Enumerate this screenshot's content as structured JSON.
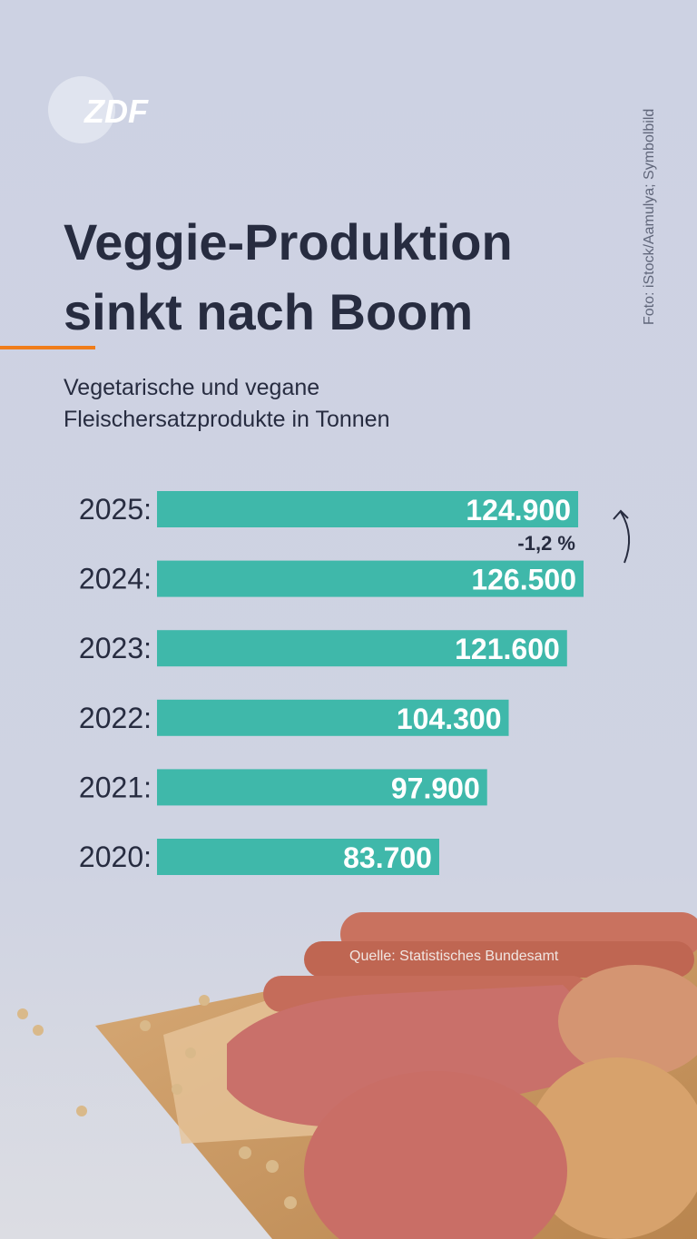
{
  "logo": "ZDF",
  "photo_credit": "Foto: iStock/Aamulya; Symbolbild",
  "chart_data": {
    "type": "bar",
    "title": "Veggie-Produktion sinkt nach Boom",
    "subtitle": "Vegetarische und vegane Fleischersatzprodukte in Tonnen",
    "categories": [
      "2025:",
      "2024:",
      "2023:",
      "2022:",
      "2021:",
      "2020:"
    ],
    "values": [
      124900,
      126500,
      121600,
      104300,
      97900,
      83700
    ],
    "value_labels": [
      "124.900",
      "126.500",
      "121.600",
      "104.300",
      "97.900",
      "83.700"
    ],
    "color": "#3fb8aa",
    "annotation": "-1,2 %",
    "source": "Quelle: Statistisches Bundesamt"
  }
}
